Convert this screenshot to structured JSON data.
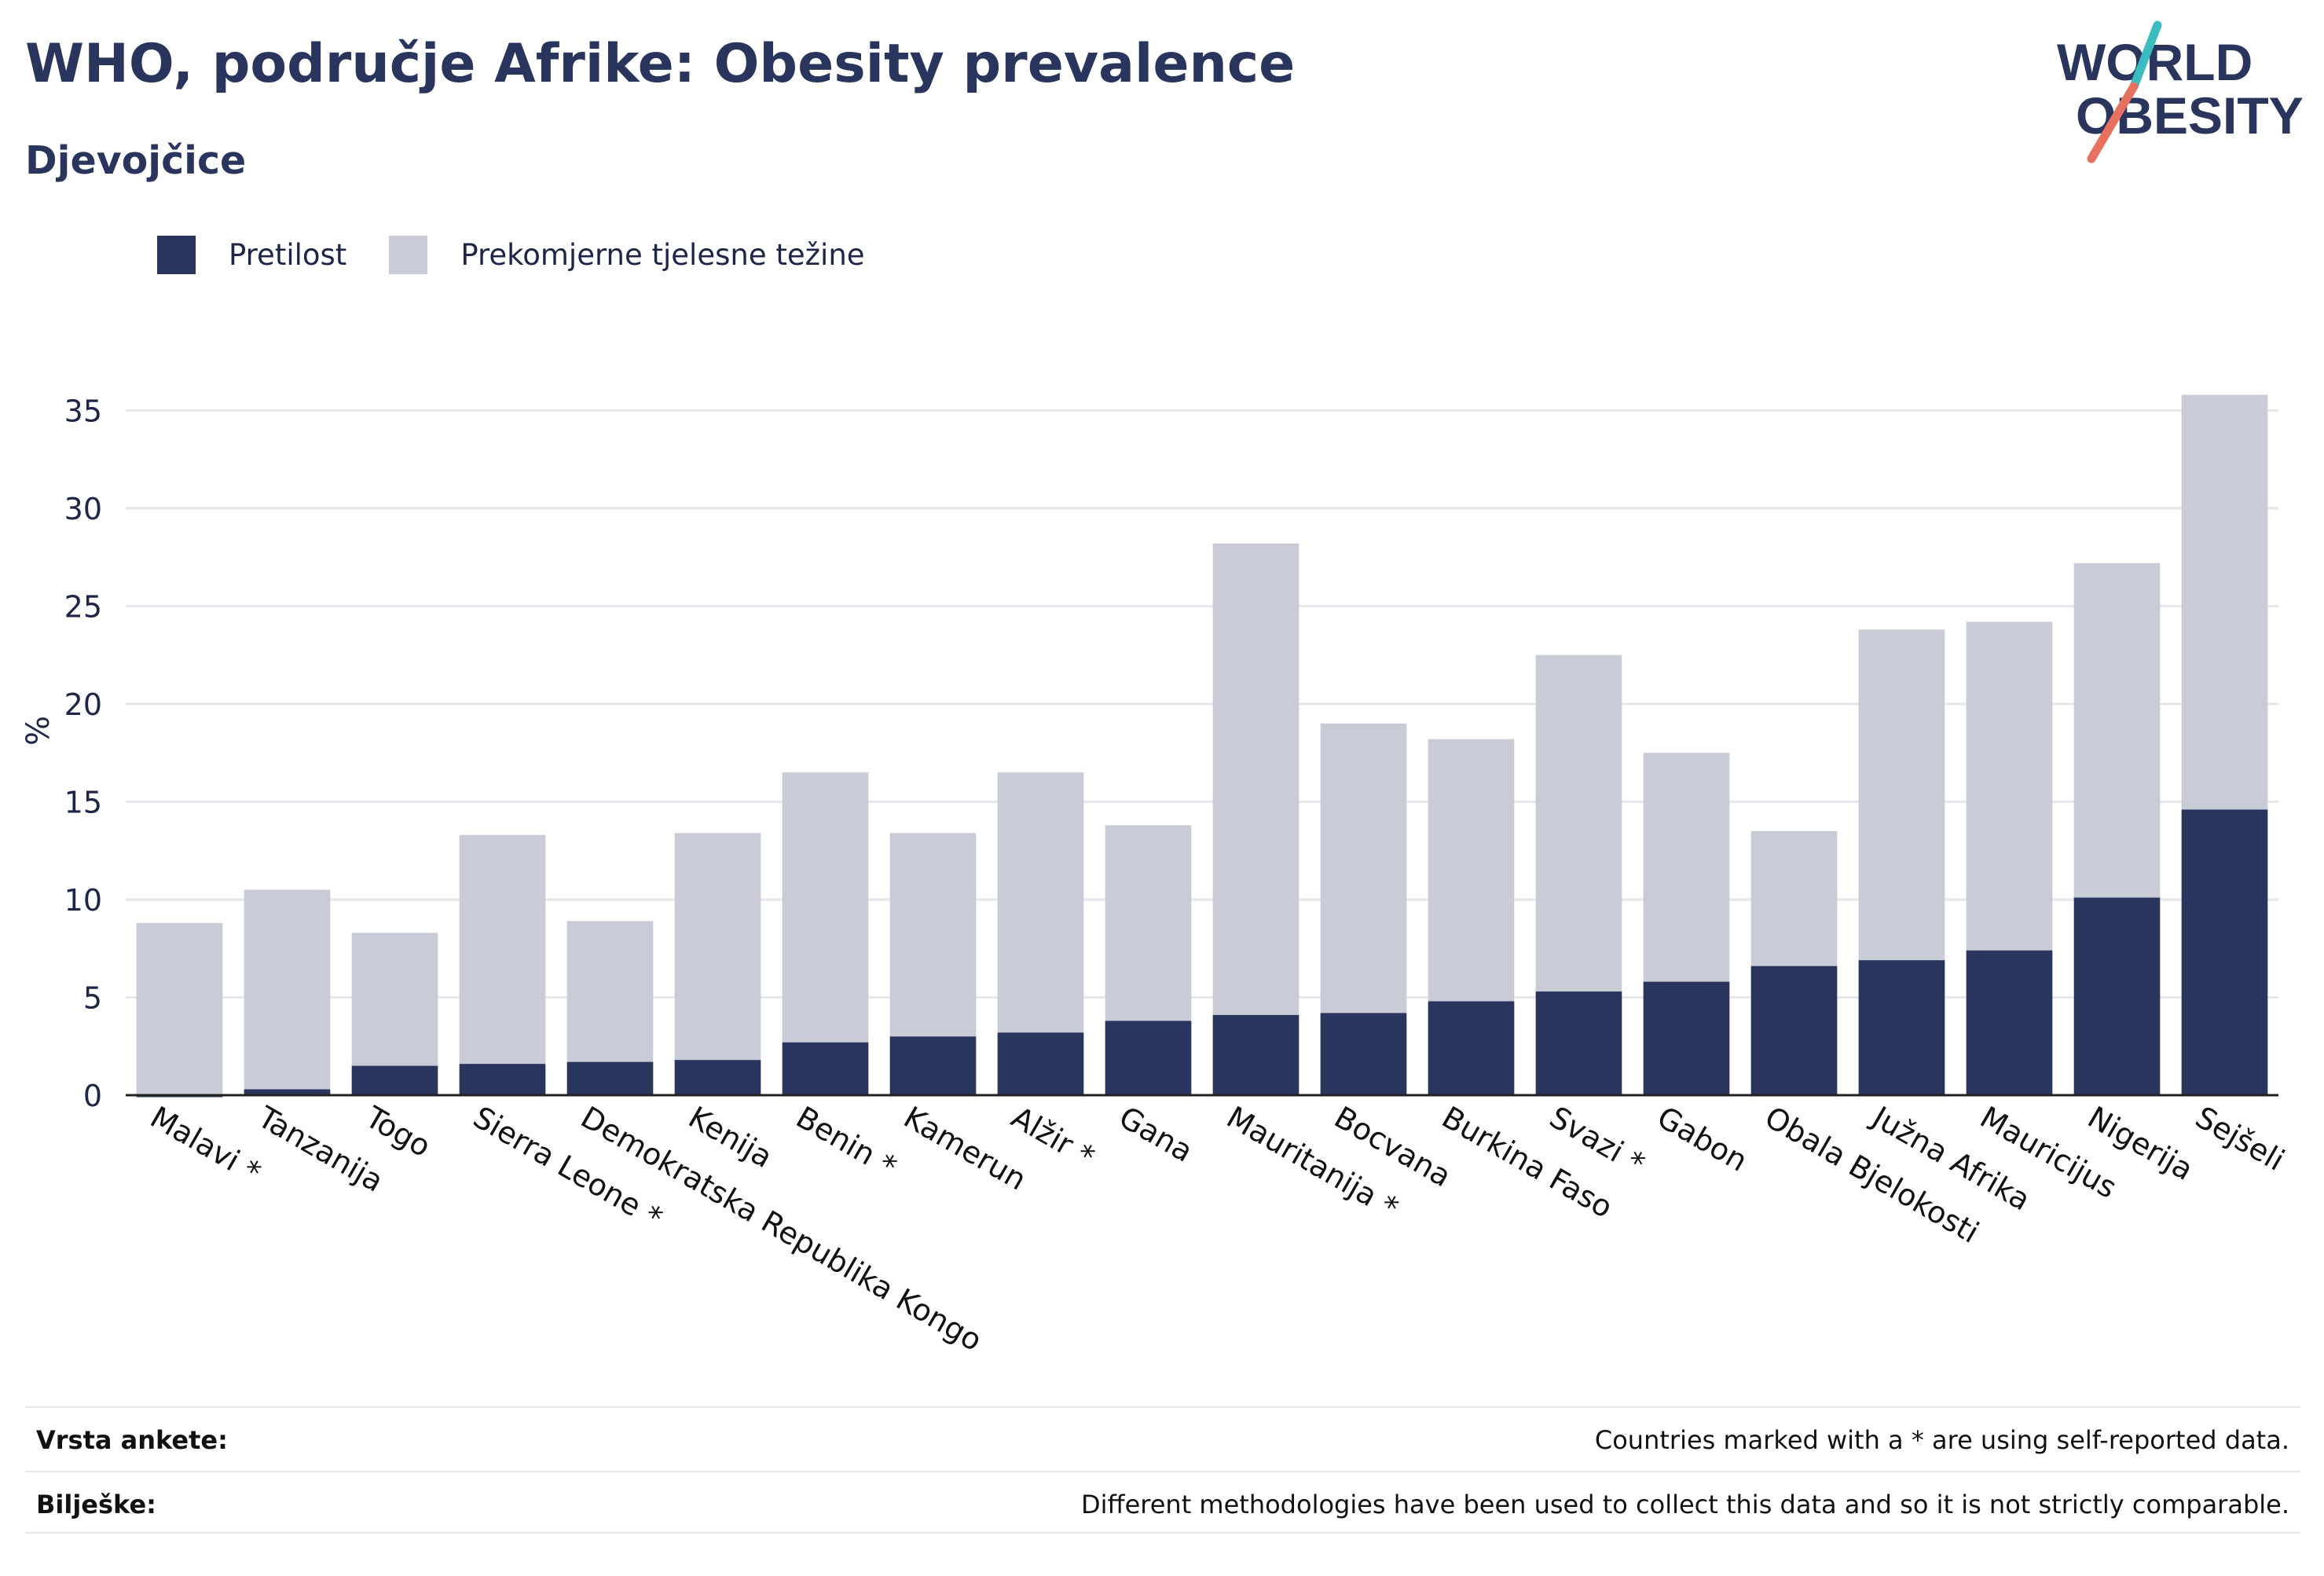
{
  "header": {
    "title": "WHO, područje Afrike: Obesity prevalence",
    "subtitle": "Djevojčice",
    "logo_line1": "WORLD",
    "logo_line2": "OBESITY"
  },
  "legend": {
    "items": [
      {
        "label": "Pretilost",
        "color": "#2a355e"
      },
      {
        "label": "Prekomjerne tjelesne težine",
        "color": "#c9cbd6"
      }
    ]
  },
  "chart_data": {
    "type": "bar",
    "stacking": "overlay",
    "ylabel": "%",
    "ylim": [
      0,
      37
    ],
    "yticks": [
      0,
      5,
      10,
      15,
      20,
      25,
      30,
      35
    ],
    "grid": true,
    "legend_position": "top-left",
    "categories": [
      "Malavi *",
      "Tanzanija",
      "Togo",
      "Sierra Leone *",
      "Demokratska Republika Kongo",
      "Kenija",
      "Benin *",
      "Kamerun",
      "Alžir *",
      "Gana",
      "Mauritanija *",
      "Bocvana",
      "Burkina Faso",
      "Svazi *",
      "Gabon",
      "Obala Bjelokosti",
      "Južna Afrika",
      "Mauricijus",
      "Nigerija",
      "Sejšeli"
    ],
    "series": [
      {
        "name": "Pretilost",
        "color": "#2a355e",
        "values": [
          -0.1,
          0.3,
          1.5,
          1.6,
          1.7,
          1.8,
          2.7,
          3.0,
          3.2,
          3.8,
          4.1,
          4.2,
          4.8,
          5.3,
          5.8,
          6.6,
          6.9,
          7.4,
          10.1,
          14.6
        ]
      },
      {
        "name": "Prekomjerne tjelesne težine",
        "color": "#c9cbd6",
        "values": [
          8.8,
          10.5,
          8.3,
          13.3,
          8.9,
          13.4,
          16.5,
          13.4,
          16.5,
          13.8,
          28.2,
          19.0,
          18.2,
          22.5,
          17.5,
          13.5,
          23.8,
          24.2,
          27.2,
          35.8
        ]
      }
    ]
  },
  "footer": {
    "rows": [
      {
        "label": "Vrsta ankete:",
        "value": "Countries marked with a * are using self-reported data."
      },
      {
        "label": "Bilješke:",
        "value": "Different methodologies have been used to collect this data and so it is not strictly comparable."
      }
    ]
  }
}
